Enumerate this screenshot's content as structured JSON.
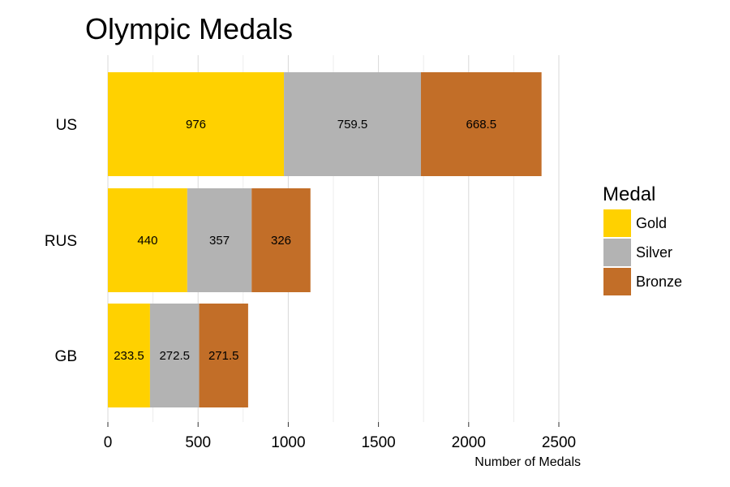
{
  "chart_data": {
    "type": "bar",
    "orientation": "horizontal",
    "stacked": true,
    "title": "Olympic Medals",
    "xlabel": "Number of Medals",
    "ylabel": "",
    "categories": [
      "US",
      "RUS",
      "GB"
    ],
    "series": [
      {
        "name": "Gold",
        "color": "#FFD100",
        "values": [
          976,
          440,
          233.5
        ]
      },
      {
        "name": "Silver",
        "color": "#B3B3B3",
        "values": [
          759.5,
          357,
          272.5
        ]
      },
      {
        "name": "Bronze",
        "color": "#C26E28",
        "values": [
          668.5,
          326,
          271.5
        ]
      }
    ],
    "xlim": [
      0,
      2500
    ],
    "xticks": [
      0,
      500,
      1000,
      1500,
      2000,
      2500
    ],
    "grid": true,
    "legend": {
      "title": "Medal",
      "position": "right"
    }
  }
}
